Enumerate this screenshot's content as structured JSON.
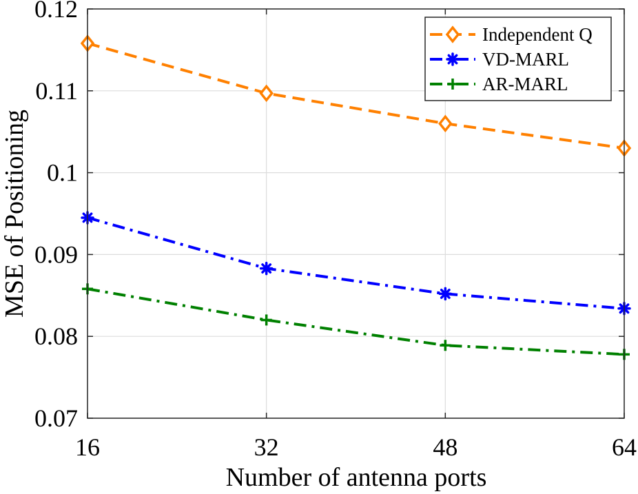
{
  "chart_data": {
    "type": "line",
    "title": "",
    "xlabel": "Number of antenna ports",
    "ylabel": "MSE of Positioning",
    "x": [
      16,
      32,
      48,
      64
    ],
    "xticks": [
      16,
      32,
      48,
      64
    ],
    "xtick_labels": [
      "16",
      "32",
      "48",
      "64"
    ],
    "yticks": [
      0.07,
      0.08,
      0.09,
      0.1,
      0.11,
      0.12
    ],
    "ytick_labels": [
      "0.07",
      "0.08",
      "0.09",
      "0.1",
      "0.11",
      "0.12"
    ],
    "xlim": [
      16,
      64
    ],
    "ylim": [
      0.07,
      0.12
    ],
    "grid": true,
    "legend_position": "top-right",
    "series": [
      {
        "name": "Independent Q",
        "color": "#ff8000",
        "dash": "dashed",
        "marker": "diamond",
        "values": [
          0.1158,
          0.1097,
          0.106,
          0.103
        ]
      },
      {
        "name": "VD-MARL",
        "color": "#0000ff",
        "dash": "dashdot",
        "marker": "asterisk",
        "values": [
          0.0945,
          0.0883,
          0.0852,
          0.0834
        ]
      },
      {
        "name": "AR-MARL",
        "color": "#008000",
        "dash": "dashdot",
        "marker": "plus",
        "values": [
          0.0858,
          0.082,
          0.0789,
          0.0778
        ]
      }
    ]
  }
}
